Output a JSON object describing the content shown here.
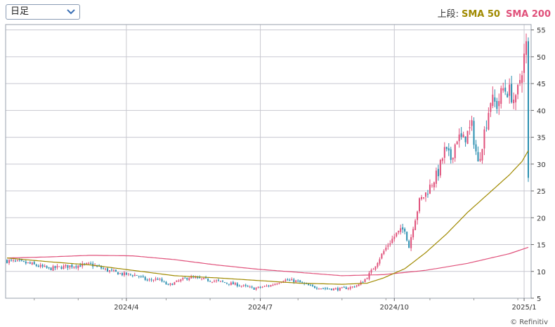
{
  "toolbar": {
    "period_value": "日足",
    "chevron_icon": "chevron-down-icon"
  },
  "legend": {
    "prefix": "上段:",
    "sma50": "SMA 50",
    "sma200": "SMA 200"
  },
  "colors": {
    "up": "#e0507a",
    "down": "#2a8fb0",
    "sma50": "#a08a00",
    "sma200": "#e0507a",
    "grid": "#c8c8d0"
  },
  "copyright": "© Refinitiv",
  "chart_data": {
    "type": "candlestick",
    "interval": "daily",
    "ylim": [
      5,
      56
    ],
    "y_ticks": [
      5,
      10,
      15,
      20,
      25,
      30,
      35,
      40,
      45,
      50,
      55
    ],
    "x_ticks": [
      "2024/4",
      "2024/7",
      "2024/10",
      "2025/1"
    ],
    "close_path": [
      [
        0,
        12.0
      ],
      [
        10,
        11.5
      ],
      [
        20,
        10.5
      ],
      [
        30,
        11.0
      ],
      [
        40,
        11.3
      ],
      [
        48,
        10.2
      ],
      [
        55,
        9.5
      ],
      [
        62,
        9.3
      ],
      [
        67,
        8.3
      ],
      [
        72,
        8.6
      ],
      [
        77,
        7.4
      ],
      [
        82,
        8.2
      ],
      [
        87,
        8.9
      ],
      [
        92,
        8.6
      ],
      [
        100,
        8.2
      ],
      [
        110,
        7.5
      ],
      [
        118,
        6.8
      ],
      [
        126,
        7.4
      ],
      [
        132,
        8.4
      ],
      [
        138,
        8.2
      ],
      [
        145,
        7.2
      ],
      [
        152,
        6.8
      ],
      [
        158,
        6.7
      ],
      [
        164,
        7.0
      ],
      [
        168,
        7.5
      ],
      [
        171,
        8.5
      ],
      [
        174,
        10.0
      ],
      [
        178,
        12.5
      ],
      [
        182,
        15.0
      ],
      [
        186,
        17.0
      ],
      [
        190,
        18.0
      ],
      [
        192,
        14.5
      ],
      [
        194,
        18.5
      ],
      [
        197,
        23.0
      ],
      [
        200,
        24.5
      ],
      [
        203,
        26.5
      ],
      [
        206,
        28.5
      ],
      [
        209,
        32.5
      ],
      [
        212,
        31.0
      ],
      [
        215,
        35.0
      ],
      [
        218,
        34.5
      ],
      [
        222,
        37.0
      ],
      [
        225,
        30.0
      ],
      [
        228,
        36.0
      ],
      [
        231,
        42.0
      ],
      [
        234,
        41.0
      ],
      [
        237,
        44.0
      ],
      [
        240,
        43.5
      ],
      [
        243,
        41.5
      ],
      [
        246,
        48.0
      ],
      [
        248,
        52.0
      ],
      [
        249,
        27.0
      ]
    ],
    "sma50_path": [
      [
        0,
        12.5
      ],
      [
        20,
        11.8
      ],
      [
        40,
        11.2
      ],
      [
        60,
        10.2
      ],
      [
        80,
        9.2
      ],
      [
        100,
        8.8
      ],
      [
        120,
        8.3
      ],
      [
        140,
        7.8
      ],
      [
        160,
        7.6
      ],
      [
        172,
        7.8
      ],
      [
        180,
        8.8
      ],
      [
        190,
        10.5
      ],
      [
        200,
        13.5
      ],
      [
        210,
        17.0
      ],
      [
        220,
        21.0
      ],
      [
        230,
        24.5
      ],
      [
        240,
        28.0
      ],
      [
        246,
        30.5
      ],
      [
        249,
        32.5
      ]
    ],
    "sma200_path": [
      [
        0,
        12.5
      ],
      [
        20,
        12.7
      ],
      [
        40,
        13.0
      ],
      [
        60,
        12.9
      ],
      [
        80,
        12.2
      ],
      [
        100,
        11.2
      ],
      [
        120,
        10.4
      ],
      [
        140,
        9.8
      ],
      [
        160,
        9.2
      ],
      [
        180,
        9.4
      ],
      [
        200,
        10.2
      ],
      [
        220,
        11.5
      ],
      [
        240,
        13.3
      ],
      [
        249,
        14.5
      ]
    ]
  }
}
